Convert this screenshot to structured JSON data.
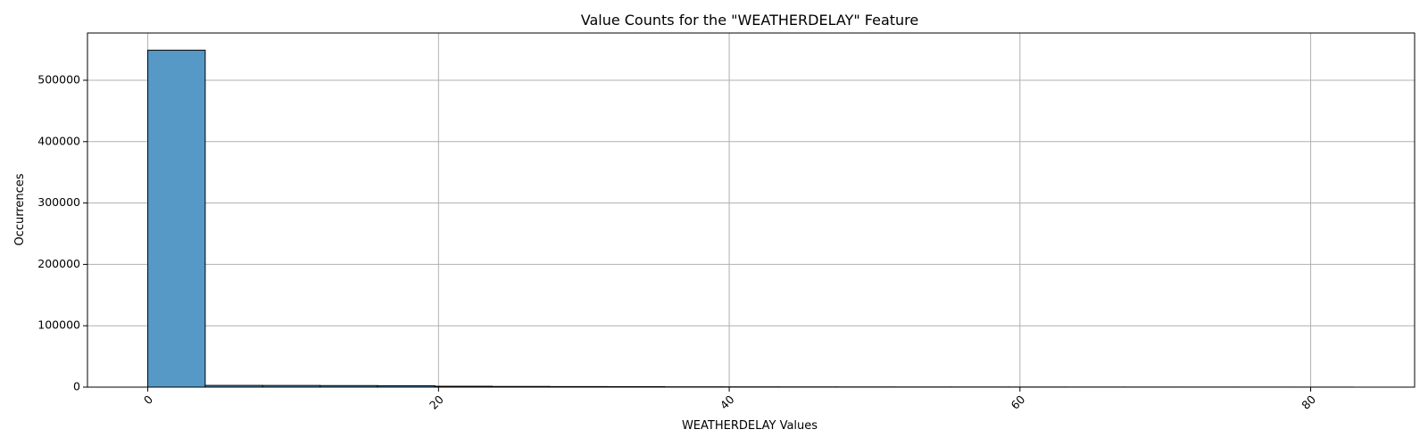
{
  "chart_data": {
    "type": "bar",
    "title": "Value Counts for the \"WEATHERDELAY\" Feature",
    "xlabel": "WEATHERDELAY Values",
    "ylabel": "Occurrences",
    "xlim": [
      -4.15,
      87.15
    ],
    "ylim": [
      0,
      577000
    ],
    "x_ticks": [
      0,
      20,
      40,
      60,
      80
    ],
    "x_tick_labels": [
      "0",
      "20",
      "40",
      "60",
      "80"
    ],
    "x_tick_rotation": 45,
    "y_ticks": [
      0,
      100000,
      200000,
      300000,
      400000,
      500000
    ],
    "y_tick_labels": [
      "0",
      "100000",
      "200000",
      "300000",
      "400000",
      "500000"
    ],
    "grid": true,
    "bar_color": "#5799c6",
    "bins": [
      {
        "start": 0,
        "end": 3.95,
        "value": 549000
      },
      {
        "start": 3.95,
        "end": 7.9,
        "value": 2800
      },
      {
        "start": 7.9,
        "end": 11.85,
        "value": 2700
      },
      {
        "start": 11.85,
        "end": 15.8,
        "value": 2500
      },
      {
        "start": 15.8,
        "end": 19.75,
        "value": 2300
      },
      {
        "start": 19.75,
        "end": 23.7,
        "value": 1400
      },
      {
        "start": 23.7,
        "end": 27.65,
        "value": 1100
      },
      {
        "start": 27.65,
        "end": 31.6,
        "value": 900
      },
      {
        "start": 31.6,
        "end": 35.55,
        "value": 800
      },
      {
        "start": 35.55,
        "end": 39.5,
        "value": 500
      },
      {
        "start": 39.5,
        "end": 43.45,
        "value": 450
      },
      {
        "start": 43.45,
        "end": 47.4,
        "value": 380
      },
      {
        "start": 47.4,
        "end": 51.35,
        "value": 330
      },
      {
        "start": 51.35,
        "end": 55.3,
        "value": 280
      },
      {
        "start": 55.3,
        "end": 59.25,
        "value": 240
      },
      {
        "start": 59.25,
        "end": 63.2,
        "value": 210
      },
      {
        "start": 63.2,
        "end": 67.15,
        "value": 180
      },
      {
        "start": 67.15,
        "end": 71.1,
        "value": 160
      },
      {
        "start": 71.1,
        "end": 75.05,
        "value": 140
      },
      {
        "start": 75.05,
        "end": 79.0,
        "value": 120
      },
      {
        "start": 79.0,
        "end": 82.95,
        "value": 100
      }
    ]
  }
}
